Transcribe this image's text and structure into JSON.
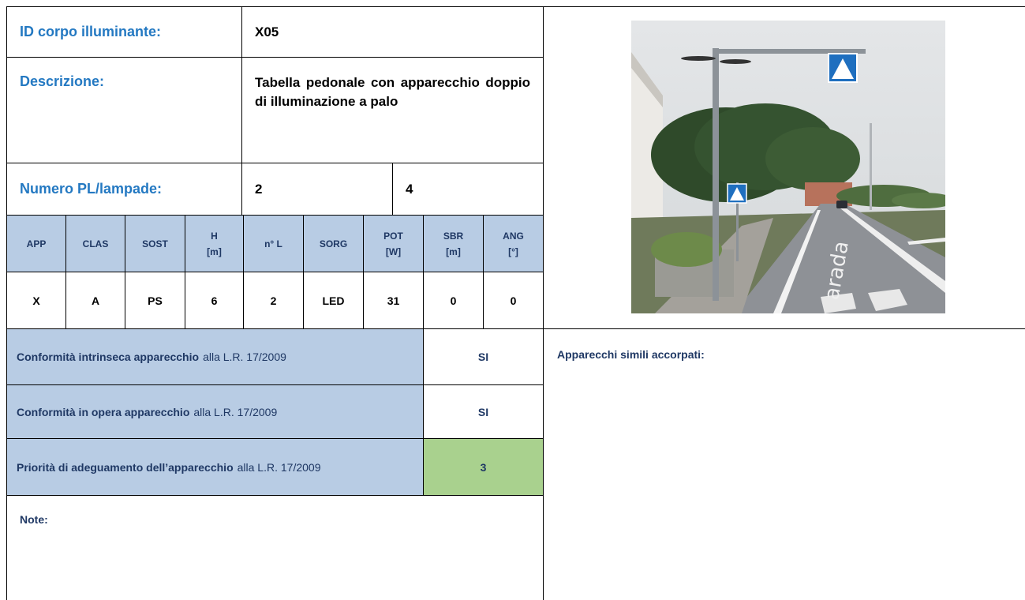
{
  "fields": {
    "id": {
      "label": "ID corpo illuminante:",
      "value": "X05"
    },
    "descrizione": {
      "label": "Descrizione:",
      "value": "Tabella pedonale con apparecchio doppio di illuminazione a palo"
    },
    "numero": {
      "label": "Numero PL/lampade:",
      "pl": "2",
      "lampade": "4"
    }
  },
  "table": {
    "headers": [
      {
        "name": "APP"
      },
      {
        "name": "CLAS"
      },
      {
        "name": "SOST"
      },
      {
        "name": "H",
        "unit": "[m]"
      },
      {
        "name": "n° L"
      },
      {
        "name": "SORG"
      },
      {
        "name": "POT",
        "unit": "[W]"
      },
      {
        "name": "SBR",
        "unit": "[m]"
      },
      {
        "name": "ANG",
        "unit": "[°]"
      }
    ],
    "row": [
      "X",
      "A",
      "PS",
      "6",
      "2",
      "LED",
      "31",
      "0",
      "0"
    ]
  },
  "conformity": [
    {
      "bold": "Conformità intrinseca apparecchio",
      "rest": "alla L.R. 17/2009",
      "value": "SI"
    },
    {
      "bold": "Conformità in opera apparecchio",
      "rest": "alla L.R. 17/2009",
      "value": "SI"
    },
    {
      "bold": "Priorità di adeguamento dell’apparecchio",
      "rest": "alla L.R. 17/2009",
      "value": "3"
    }
  ],
  "note_label": "Note:",
  "similar_label": "Apparecchi simili accorpati:"
}
